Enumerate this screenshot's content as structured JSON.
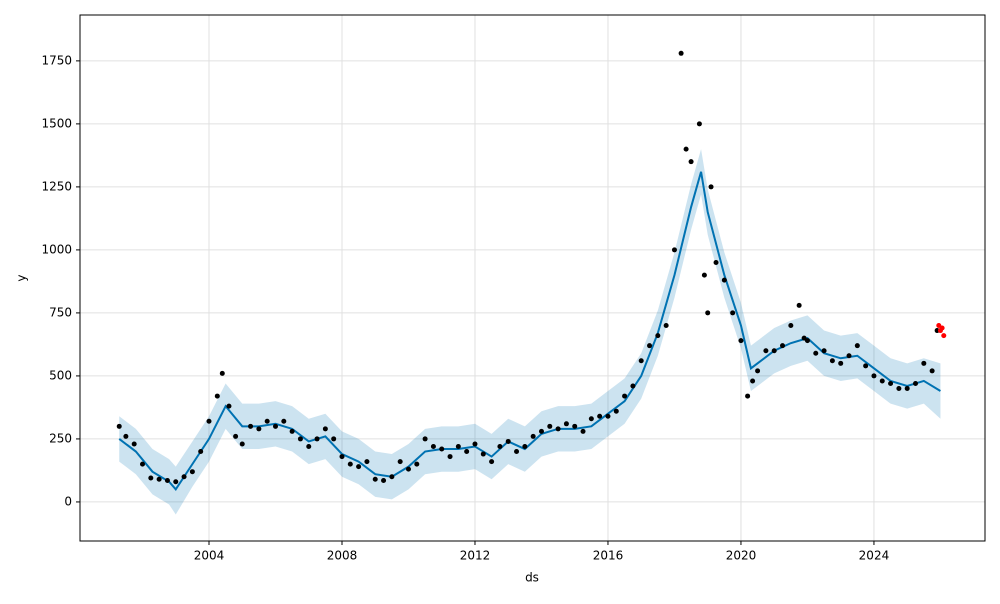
{
  "chart_data": {
    "type": "forecast",
    "xlabel": "ds",
    "ylabel": "y",
    "xlim": [
      2000.12,
      2027.34
    ],
    "ylim": [
      -155,
      1932
    ],
    "xticks": [
      2004,
      2008,
      2012,
      2016,
      2020,
      2024
    ],
    "yticks": [
      0,
      250,
      500,
      750,
      1000,
      1250,
      1500,
      1750
    ],
    "grid": true,
    "series": [
      {
        "style": "band",
        "color": "#0072b2",
        "x": [
          2001.3,
          2001.8,
          2002.3,
          2002.8,
          2003.0,
          2003.5,
          2004.0,
          2004.5,
          2005.0,
          2005.5,
          2006.0,
          2006.5,
          2007.0,
          2007.5,
          2008.0,
          2008.5,
          2009.0,
          2009.5,
          2010.0,
          2010.5,
          2011.0,
          2011.5,
          2012.0,
          2012.5,
          2013.0,
          2013.5,
          2014.0,
          2014.5,
          2015.0,
          2015.5,
          2016.0,
          2016.5,
          2017.0,
          2017.5,
          2018.0,
          2018.5,
          2018.8,
          2019.0,
          2019.5,
          2020.0,
          2020.3,
          2020.6,
          2021.0,
          2021.5,
          2022.0,
          2022.5,
          2023.0,
          2023.5,
          2024.0,
          2024.5,
          2025.0,
          2025.5,
          2026.0
        ],
        "lower": [
          160,
          110,
          30,
          -10,
          -50,
          60,
          160,
          290,
          210,
          210,
          220,
          200,
          150,
          170,
          100,
          70,
          20,
          10,
          50,
          110,
          120,
          120,
          130,
          90,
          150,
          120,
          180,
          200,
          200,
          210,
          260,
          310,
          410,
          580,
          810,
          1080,
          1220,
          1060,
          810,
          610,
          440,
          470,
          510,
          540,
          560,
          500,
          480,
          490,
          440,
          390,
          370,
          390,
          330
        ],
        "upper": [
          340,
          290,
          210,
          170,
          140,
          240,
          340,
          470,
          390,
          390,
          400,
          380,
          330,
          350,
          280,
          250,
          200,
          190,
          230,
          290,
          300,
          300,
          310,
          270,
          330,
          300,
          360,
          380,
          380,
          390,
          440,
          490,
          590,
          760,
          990,
          1260,
          1400,
          1240,
          990,
          790,
          620,
          650,
          690,
          720,
          740,
          680,
          660,
          670,
          620,
          570,
          550,
          570,
          550
        ]
      },
      {
        "style": "line",
        "color": "#0072b2",
        "x": [
          2001.3,
          2001.8,
          2002.3,
          2002.8,
          2003.0,
          2003.5,
          2004.0,
          2004.5,
          2005.0,
          2005.5,
          2006.0,
          2006.5,
          2007.0,
          2007.5,
          2008.0,
          2008.5,
          2009.0,
          2009.5,
          2010.0,
          2010.5,
          2011.0,
          2011.5,
          2012.0,
          2012.5,
          2013.0,
          2013.5,
          2014.0,
          2014.5,
          2015.0,
          2015.5,
          2016.0,
          2016.5,
          2017.0,
          2017.5,
          2018.0,
          2018.5,
          2018.8,
          2019.0,
          2019.5,
          2020.0,
          2020.3,
          2020.6,
          2021.0,
          2021.5,
          2022.0,
          2022.5,
          2023.0,
          2023.5,
          2024.0,
          2024.5,
          2025.0,
          2025.5,
          2026.0
        ],
        "values": [
          250,
          200,
          120,
          80,
          50,
          150,
          250,
          380,
          300,
          300,
          310,
          290,
          240,
          260,
          190,
          160,
          110,
          100,
          140,
          200,
          210,
          210,
          220,
          180,
          240,
          210,
          270,
          290,
          290,
          300,
          350,
          400,
          500,
          670,
          900,
          1170,
          1310,
          1150,
          900,
          700,
          530,
          560,
          600,
          630,
          650,
          590,
          570,
          580,
          530,
          480,
          460,
          480,
          440
        ]
      },
      {
        "style": "points",
        "color": "#000000",
        "x": [
          2001.3,
          2001.5,
          2001.75,
          2002.0,
          2002.25,
          2002.5,
          2002.75,
          2003.0,
          2003.25,
          2003.5,
          2003.75,
          2004.0,
          2004.25,
          2004.4,
          2004.6,
          2004.8,
          2005.0,
          2005.25,
          2005.5,
          2005.75,
          2006.0,
          2006.25,
          2006.5,
          2006.75,
          2007.0,
          2007.25,
          2007.5,
          2007.75,
          2008.0,
          2008.25,
          2008.5,
          2008.75,
          2009.0,
          2009.25,
          2009.5,
          2009.75,
          2010.0,
          2010.25,
          2010.5,
          2010.75,
          2011.0,
          2011.25,
          2011.5,
          2011.75,
          2012.0,
          2012.25,
          2012.5,
          2012.75,
          2013.0,
          2013.25,
          2013.5,
          2013.75,
          2014.0,
          2014.25,
          2014.5,
          2014.75,
          2015.0,
          2015.25,
          2015.5,
          2015.75,
          2016.0,
          2016.25,
          2016.5,
          2016.75,
          2017.0,
          2017.25,
          2017.5,
          2017.75,
          2018.0,
          2018.2,
          2018.35,
          2018.5,
          2018.75,
          2018.9,
          2019.0,
          2019.1,
          2019.25,
          2019.5,
          2019.75,
          2020.0,
          2020.2,
          2020.35,
          2020.5,
          2020.75,
          2021.0,
          2021.25,
          2021.5,
          2021.75,
          2021.9,
          2022.0,
          2022.25,
          2022.5,
          2022.75,
          2023.0,
          2023.25,
          2023.5,
          2023.75,
          2024.0,
          2024.25,
          2024.5,
          2024.75,
          2025.0,
          2025.25,
          2025.5,
          2025.75,
          2025.9
        ],
        "values": [
          300,
          260,
          230,
          150,
          95,
          90,
          85,
          80,
          100,
          120,
          200,
          320,
          420,
          510,
          380,
          260,
          230,
          300,
          290,
          320,
          300,
          320,
          280,
          250,
          220,
          250,
          290,
          250,
          180,
          150,
          140,
          160,
          90,
          85,
          100,
          160,
          130,
          150,
          250,
          220,
          210,
          180,
          220,
          200,
          230,
          190,
          160,
          220,
          240,
          200,
          220,
          260,
          280,
          300,
          290,
          310,
          300,
          280,
          330,
          340,
          340,
          360,
          420,
          460,
          560,
          620,
          660,
          700,
          1000,
          1780,
          1400,
          1350,
          1500,
          900,
          750,
          1250,
          950,
          880,
          750,
          640,
          420,
          480,
          520,
          600,
          600,
          620,
          700,
          780,
          650,
          640,
          590,
          600,
          560,
          550,
          580,
          620,
          540,
          500,
          480,
          470,
          450,
          450,
          470,
          550,
          520,
          680
        ]
      },
      {
        "style": "points",
        "color": "#ff0000",
        "x": [
          2025.95,
          2026.0,
          2026.05,
          2026.1
        ],
        "values": [
          700,
          680,
          690,
          660
        ]
      }
    ]
  }
}
